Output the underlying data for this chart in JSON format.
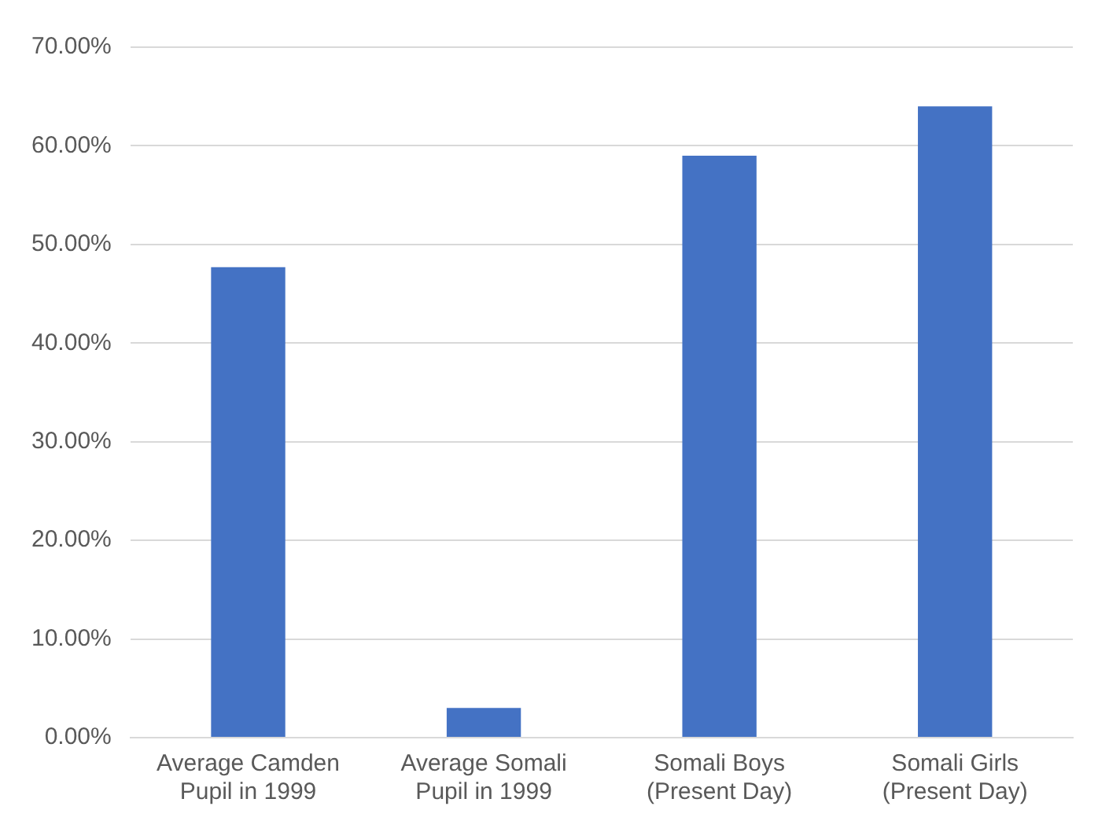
{
  "chart_data": {
    "type": "bar",
    "categories": [
      "Average Camden Pupil in 1999",
      "Average Somali Pupil in 1999",
      "Somali Boys (Present Day)",
      "Somali Girls (Present Day)"
    ],
    "values": [
      47.7,
      3.0,
      59.0,
      64.0
    ],
    "color": "#4472c4",
    "ylim": [
      0,
      70
    ],
    "yticks": [
      {
        "value": 0,
        "label": "0.00%"
      },
      {
        "value": 10,
        "label": "10.00%"
      },
      {
        "value": 20,
        "label": "20.00%"
      },
      {
        "value": 30,
        "label": "30.00%"
      },
      {
        "value": 40,
        "label": "40.00%"
      },
      {
        "value": 50,
        "label": "50.00%"
      },
      {
        "value": 60,
        "label": "60.00%"
      },
      {
        "value": 70,
        "label": "70.00%"
      }
    ],
    "grid": "y",
    "legend": false
  }
}
